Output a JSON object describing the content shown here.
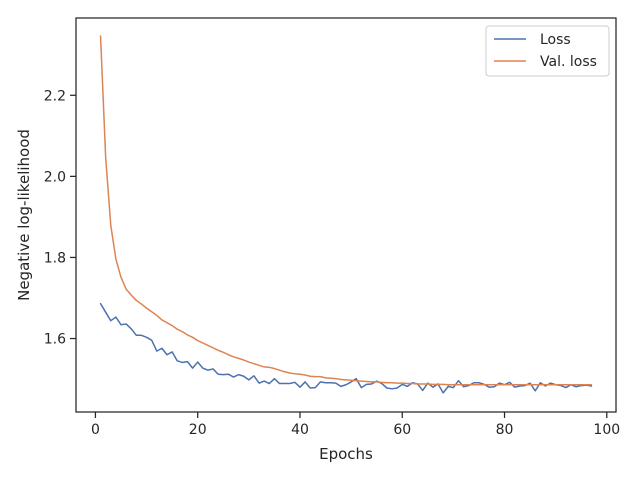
{
  "chart_data": {
    "type": "line",
    "title": "",
    "xlabel": "Epochs",
    "ylabel": "Negative log-likelihood",
    "xlim": [
      -3.8,
      101.8
    ],
    "ylim": [
      1.4188,
      2.3906
    ],
    "xticks": [
      0,
      20,
      40,
      60,
      80,
      100
    ],
    "yticks": [
      1.6,
      1.8,
      2.0,
      2.2
    ],
    "ytick_labels": [
      "1.6",
      "1.8",
      "2.0",
      "2.2"
    ],
    "grid": false,
    "legend_position": "top-right",
    "x": [
      1,
      2,
      3,
      4,
      5,
      6,
      7,
      8,
      9,
      10,
      11,
      12,
      13,
      14,
      15,
      16,
      17,
      18,
      19,
      20,
      21,
      22,
      23,
      24,
      25,
      26,
      27,
      28,
      29,
      30,
      31,
      32,
      33,
      34,
      35,
      36,
      37,
      38,
      39,
      40,
      41,
      42,
      43,
      44,
      45,
      46,
      47,
      48,
      49,
      50,
      51,
      52,
      53,
      54,
      55,
      56,
      57,
      58,
      59,
      60,
      61,
      62,
      63,
      64,
      65,
      66,
      67,
      68,
      69,
      70,
      71,
      72,
      73,
      74,
      75,
      76,
      77,
      78,
      79,
      80,
      81,
      82,
      83,
      84,
      85,
      86,
      87,
      88,
      89,
      90,
      91,
      92,
      93,
      94,
      95,
      96,
      97
    ],
    "series": [
      {
        "name": "Loss",
        "color": "#4c72b0",
        "values": [
          1.686,
          1.665,
          1.644,
          1.653,
          1.634,
          1.636,
          1.624,
          1.608,
          1.608,
          1.603,
          1.596,
          1.569,
          1.576,
          1.56,
          1.567,
          1.545,
          1.541,
          1.543,
          1.527,
          1.542,
          1.527,
          1.522,
          1.525,
          1.512,
          1.511,
          1.512,
          1.505,
          1.511,
          1.507,
          1.498,
          1.508,
          1.49,
          1.495,
          1.489,
          1.501,
          1.489,
          1.489,
          1.489,
          1.492,
          1.48,
          1.493,
          1.478,
          1.479,
          1.493,
          1.491,
          1.491,
          1.49,
          1.482,
          1.486,
          1.493,
          1.501,
          1.479,
          1.487,
          1.488,
          1.495,
          1.489,
          1.478,
          1.476,
          1.478,
          1.487,
          1.482,
          1.491,
          1.488,
          1.472,
          1.49,
          1.48,
          1.488,
          1.466,
          1.482,
          1.479,
          1.496,
          1.481,
          1.484,
          1.491,
          1.491,
          1.487,
          1.48,
          1.481,
          1.49,
          1.486,
          1.492,
          1.48,
          1.483,
          1.484,
          1.49,
          1.471,
          1.491,
          1.483,
          1.49,
          1.486,
          1.484,
          1.479,
          1.486,
          1.481,
          1.484,
          1.485,
          1.483
        ]
      },
      {
        "name": "Val. loss",
        "color": "#dd8452",
        "values": [
          2.346,
          2.047,
          1.879,
          1.796,
          1.751,
          1.722,
          1.707,
          1.694,
          1.685,
          1.675,
          1.666,
          1.657,
          1.646,
          1.639,
          1.632,
          1.623,
          1.617,
          1.609,
          1.603,
          1.595,
          1.589,
          1.583,
          1.577,
          1.571,
          1.566,
          1.56,
          1.555,
          1.551,
          1.547,
          1.542,
          1.538,
          1.534,
          1.53,
          1.529,
          1.526,
          1.522,
          1.518,
          1.515,
          1.513,
          1.512,
          1.51,
          1.507,
          1.506,
          1.506,
          1.503,
          1.502,
          1.501,
          1.499,
          1.498,
          1.497,
          1.496,
          1.495,
          1.494,
          1.493,
          1.493,
          1.492,
          1.491,
          1.491,
          1.49,
          1.49,
          1.489,
          1.489,
          1.488,
          1.488,
          1.488,
          1.487,
          1.487,
          1.487,
          1.486,
          1.486,
          1.486,
          1.486,
          1.486,
          1.486,
          1.486,
          1.486,
          1.486,
          1.486,
          1.486,
          1.486,
          1.486,
          1.486,
          1.486,
          1.486,
          1.486,
          1.486,
          1.486,
          1.486,
          1.486,
          1.486,
          1.486,
          1.486,
          1.486,
          1.486,
          1.486,
          1.486,
          1.486
        ]
      }
    ]
  }
}
